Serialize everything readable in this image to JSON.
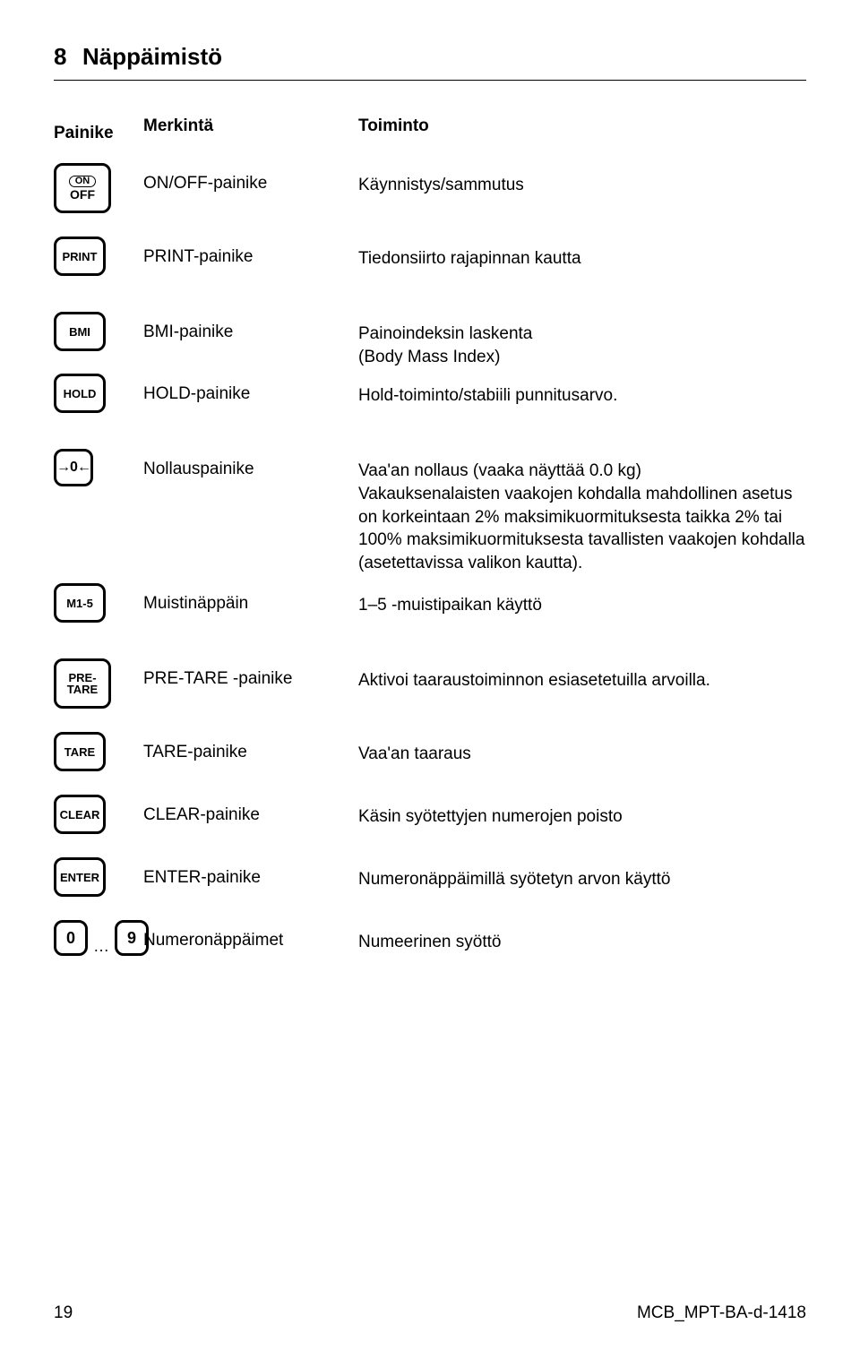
{
  "heading": {
    "num": "8",
    "title": "Näppäimistö"
  },
  "headers": {
    "col1": "Painike",
    "col2": "Merkintä",
    "col3": "Toiminto"
  },
  "rows": [
    {
      "key_style": "large",
      "key_lines": [
        "ON",
        "OFF"
      ],
      "on_pill": true,
      "label": "ON/OFF-painike",
      "desc": "Käynnistys/sammutus"
    },
    {
      "key_style": "medium",
      "key_text": "PRINT",
      "label": "PRINT-painike",
      "desc": "Tiedonsiirto rajapinnan kautta"
    },
    {
      "key_style": "medium",
      "key_text": "BMI",
      "label": "BMI-painike",
      "desc": "Painoindeksin laskenta\n(Body Mass Index)"
    },
    {
      "key_style": "medium",
      "key_text": "HOLD",
      "label": "HOLD-painike",
      "desc": "Hold-toiminto/stabiili punnitusarvo."
    },
    {
      "key_style": "thin",
      "key_text": "→0←",
      "zero_glyph": true,
      "label": "Nollauspainike",
      "desc": "Vaa'an nollaus (vaaka näyttää 0.0 kg)\nVakauksenalaisten vaakojen kohdalla mahdollinen asetus on korkeintaan 2% maksimikuormituksesta taikka 2% tai 100% maksimikuormituksesta tavallisten vaakojen kohdalla (asetettavissa valikon kautta)."
    },
    {
      "key_style": "medium",
      "key_text": "M1-5",
      "label": "Muistinäppäin",
      "desc": "1–5 -muistipaikan käyttö"
    },
    {
      "key_style": "large",
      "key_lines": [
        "PRE-",
        "TARE"
      ],
      "label": "PRE-TARE -painike",
      "desc": "Aktivoi taaraustoiminnon esiasetetuilla arvoilla."
    },
    {
      "key_style": "medium",
      "key_text": "TARE",
      "label": "TARE-painike",
      "desc": "Vaa'an taaraus"
    },
    {
      "key_style": "medium",
      "key_text": "CLEAR",
      "label": "CLEAR-painike",
      "desc": "Käsin syötettyjen numerojen poisto"
    },
    {
      "key_style": "medium",
      "key_text": "ENTER",
      "label": "ENTER-painike",
      "desc": "Numeronäppäimillä syötetyn arvon käyttö"
    },
    {
      "numkeys": [
        "0",
        "9"
      ],
      "label": "Numeronäppäimet",
      "desc": "Numeerinen syöttö"
    }
  ],
  "footer": {
    "page": "19",
    "doc": "MCB_MPT-BA-d-1418"
  }
}
